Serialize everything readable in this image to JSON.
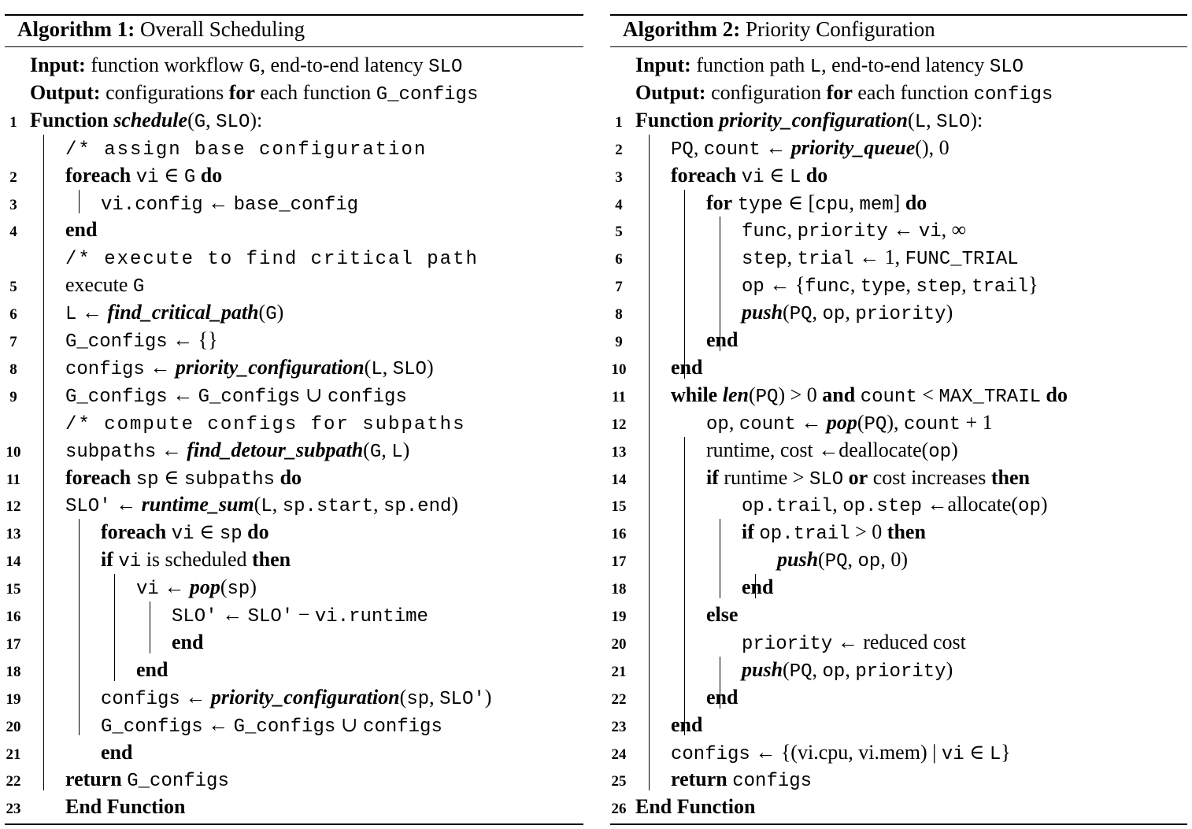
{
  "algorithm1": {
    "caption_label": "Algorithm 1:",
    "caption_title": "Overall Scheduling",
    "input": "Input: function workflow G, end-to-end latency SLO",
    "output": "Output: configurations for each function G_configs",
    "lines": [
      {
        "num": "1",
        "text": "Function schedule(G, SLO):"
      },
      {
        "num": "",
        "text": "/* assign base configuration */"
      },
      {
        "num": "2",
        "text": "foreach vi ∈ G do"
      },
      {
        "num": "3",
        "text": "vi.config ← base_config"
      },
      {
        "num": "4",
        "text": "end"
      },
      {
        "num": "",
        "text": "/* execute to find critical path */"
      },
      {
        "num": "5",
        "text": "execute G"
      },
      {
        "num": "6",
        "text": "L ← find_critical_path(G)"
      },
      {
        "num": "7",
        "text": "G_configs ← {}"
      },
      {
        "num": "8",
        "text": "configs ← priority_configuration(L, SLO)"
      },
      {
        "num": "9",
        "text": "G_configs ← G_configs ∪ configs"
      },
      {
        "num": "",
        "text": "/* compute configs for subpaths */"
      },
      {
        "num": "10",
        "text": "subpaths ← find_detour_subpath(G, L)"
      },
      {
        "num": "11",
        "text": "foreach sp ∈ subpaths do"
      },
      {
        "num": "12",
        "text": "SLO′ ← runtime_sum(L, sp.start, sp.end)"
      },
      {
        "num": "13",
        "text": "foreach vi ∈ sp do"
      },
      {
        "num": "14",
        "text": "if vi is scheduled then"
      },
      {
        "num": "15",
        "text": "vi ← pop(sp)"
      },
      {
        "num": "16",
        "text": "SLO′ ← SLO′ − vi.runtime"
      },
      {
        "num": "17",
        "text": "end"
      },
      {
        "num": "18",
        "text": "end"
      },
      {
        "num": "19",
        "text": "configs ← priority_configuration(sp, SLO′)"
      },
      {
        "num": "20",
        "text": "G_configs ← G_configs ∪ configs"
      },
      {
        "num": "21",
        "text": "end"
      },
      {
        "num": "22",
        "text": "return G_configs"
      },
      {
        "num": "23",
        "text": "End Function"
      }
    ]
  },
  "algorithm2": {
    "caption_label": "Algorithm 2:",
    "caption_title": "Priority Configuration",
    "input": "Input: function path L, end-to-end latency SLO",
    "output": "Output: configuration for each function configs",
    "lines": [
      {
        "num": "1",
        "text": "Function priority_configuration(L, SLO):"
      },
      {
        "num": "2",
        "text": "PQ, count ← priority_queue(), 0"
      },
      {
        "num": "3",
        "text": "foreach vi ∈ L do"
      },
      {
        "num": "4",
        "text": "for type ∈ [cpu, mem] do"
      },
      {
        "num": "5",
        "text": "func, priority ← vi, ∞"
      },
      {
        "num": "6",
        "text": "step, trial ← 1, FUNC_TRIAL"
      },
      {
        "num": "7",
        "text": "op ← {func, type, step, trail}"
      },
      {
        "num": "8",
        "text": "push(PQ, op, priority)"
      },
      {
        "num": "9",
        "text": "end"
      },
      {
        "num": "10",
        "text": "end"
      },
      {
        "num": "11",
        "text": "while len(PQ) > 0 and count < MAX_TRAIL do"
      },
      {
        "num": "12",
        "text": "op, count ← pop(PQ), count + 1"
      },
      {
        "num": "13",
        "text": "runtime, cost ←deallocate(op)"
      },
      {
        "num": "14",
        "text": "if runtime > SLO or cost increases then"
      },
      {
        "num": "15",
        "text": "op.trail, op.step ←allocate(op)"
      },
      {
        "num": "16",
        "text": "if op.trail > 0 then"
      },
      {
        "num": "17",
        "text": "push(PQ, op, 0)"
      },
      {
        "num": "18",
        "text": "end"
      },
      {
        "num": "19",
        "text": "else"
      },
      {
        "num": "20",
        "text": "priority ← reduced cost"
      },
      {
        "num": "21",
        "text": "push(PQ, op, priority)"
      },
      {
        "num": "22",
        "text": "end"
      },
      {
        "num": "23",
        "text": "end"
      },
      {
        "num": "24",
        "text": "configs ← {(vi.cpu, vi.mem) | vi ∈ L}"
      },
      {
        "num": "25",
        "text": "return configs"
      },
      {
        "num": "26",
        "text": "End Function"
      }
    ]
  }
}
